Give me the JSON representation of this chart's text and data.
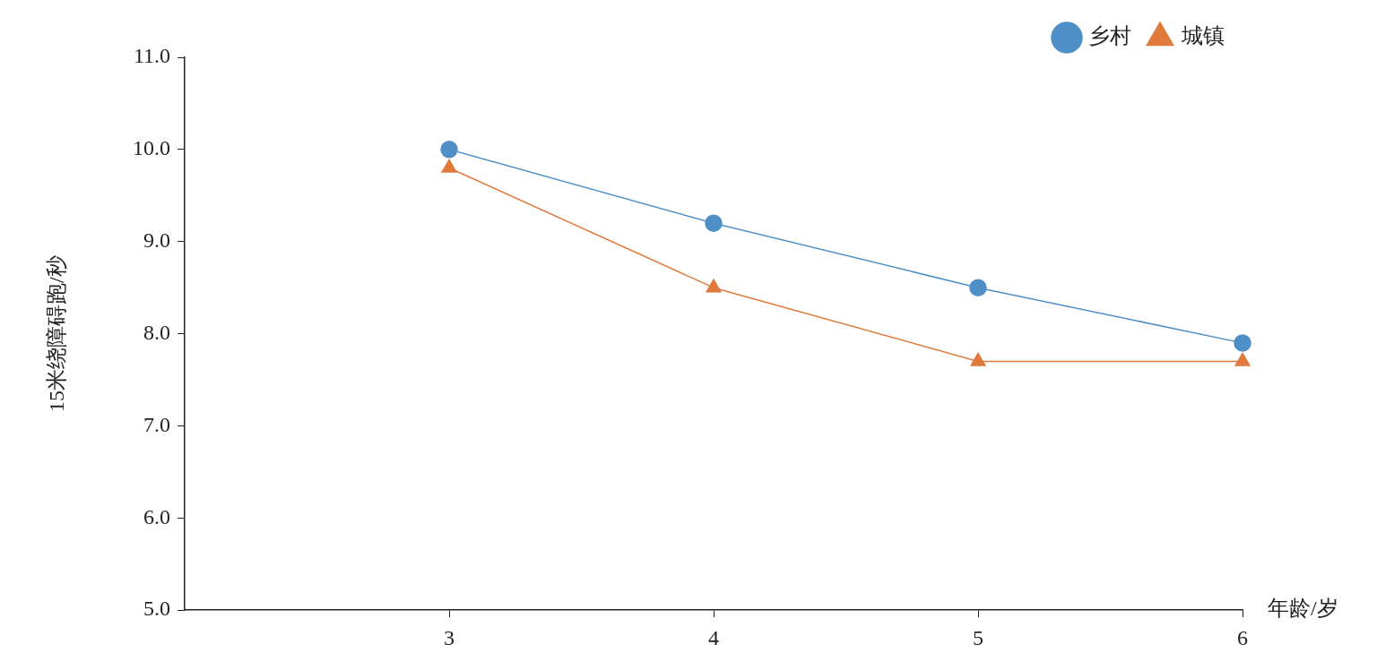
{
  "chart_data": {
    "type": "line",
    "xlabel": "年龄/岁",
    "ylabel": "15米绕障碍跑/秒",
    "x": [
      3,
      4,
      5,
      6
    ],
    "xlim": [
      2,
      6
    ],
    "xticks": [
      3,
      4,
      5,
      6
    ],
    "ylim": [
      5,
      11
    ],
    "yticks": [
      {
        "value": 5,
        "label": "5.0"
      },
      {
        "value": 6,
        "label": "6.0"
      },
      {
        "value": 7,
        "label": "7.0"
      },
      {
        "value": 8,
        "label": "8.0"
      },
      {
        "value": 9,
        "label": "9.0"
      },
      {
        "value": 10,
        "label": "10.0"
      },
      {
        "value": 11,
        "label": "11.0"
      }
    ],
    "series": [
      {
        "name": "乡村",
        "color": "#4f8fc8",
        "values": [
          10.0,
          9.2,
          8.5,
          7.9
        ],
        "marker": "circle"
      },
      {
        "name": "城镇",
        "color": "#e07a3c",
        "values": [
          9.8,
          8.5,
          7.7,
          7.7
        ],
        "marker": "triangle"
      }
    ],
    "grid": false,
    "legend": "top right",
    "line_style": "solid"
  }
}
